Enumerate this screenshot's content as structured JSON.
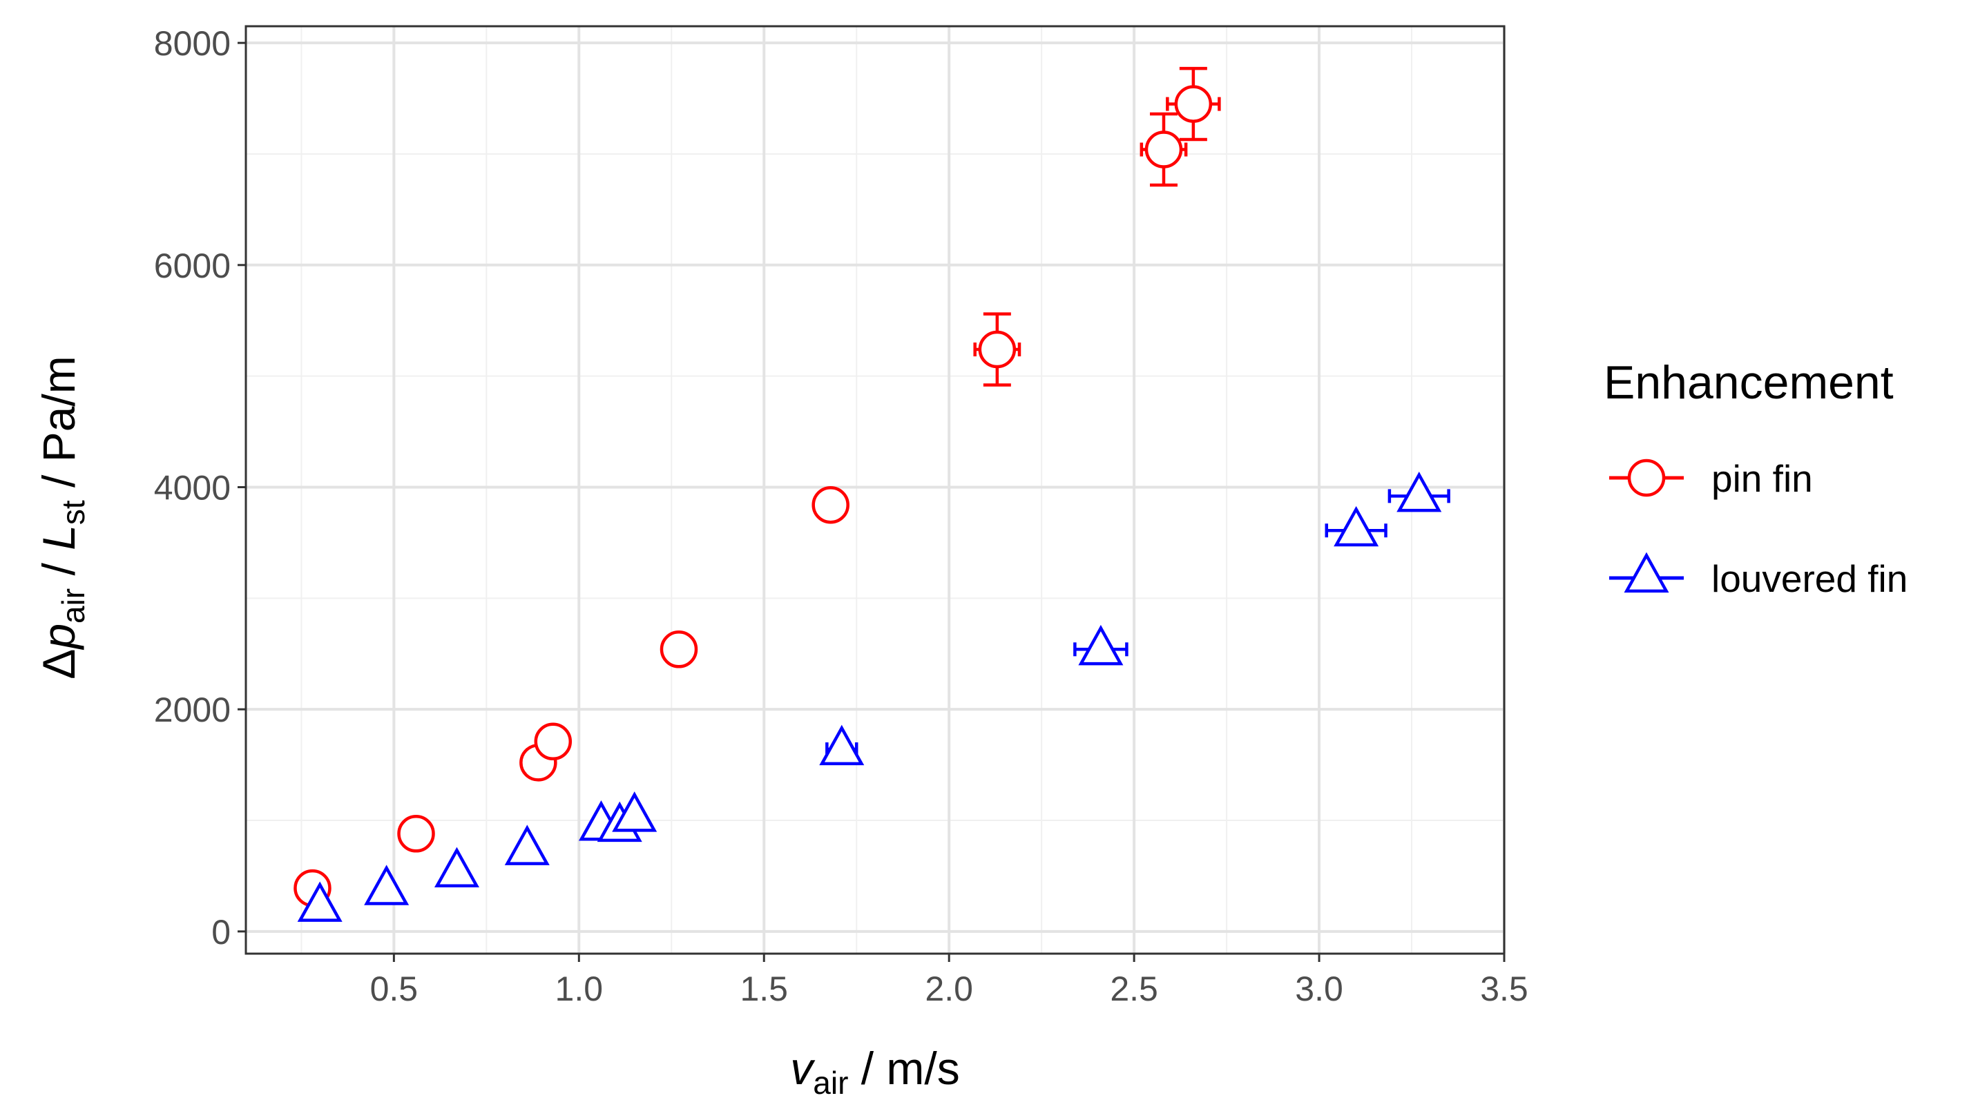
{
  "chart_data": {
    "type": "scatter",
    "xlabel": {
      "symbol": "v",
      "sub": "air",
      "rest": " / m/s"
    },
    "ylabel": {
      "delta": "Δ",
      "p": "p",
      "p_sub": "air",
      "sep": " / ",
      "L": "L",
      "L_sub": "st",
      "unit": "  /  Pa/m"
    },
    "xlim": [
      0.1,
      3.5
    ],
    "ylim": [
      -200,
      8150
    ],
    "x_ticks": [
      0.5,
      1.0,
      1.5,
      2.0,
      2.5,
      3.0,
      3.5
    ],
    "x_tick_labels": [
      "0.5",
      "1.0",
      "1.5",
      "2.0",
      "2.5",
      "3.0",
      "3.5"
    ],
    "y_ticks": [
      0,
      2000,
      4000,
      6000,
      8000
    ],
    "y_tick_labels": [
      "0",
      "2000",
      "4000",
      "6000",
      "8000"
    ],
    "grid": true,
    "legend": {
      "title": "Enhancement",
      "position": "right"
    },
    "series": [
      {
        "name": "pin fin",
        "color": "#ff0000",
        "marker": "circle",
        "points": [
          {
            "x": 0.28,
            "y": 390,
            "xerr": 0.0,
            "yerr": 0
          },
          {
            "x": 0.56,
            "y": 880,
            "xerr": 0.0,
            "yerr": 0
          },
          {
            "x": 0.89,
            "y": 1520,
            "xerr": 0.0,
            "yerr": 0
          },
          {
            "x": 0.93,
            "y": 1710,
            "xerr": 0.0,
            "yerr": 0
          },
          {
            "x": 1.27,
            "y": 2540,
            "xerr": 0.0,
            "yerr": 0
          },
          {
            "x": 1.68,
            "y": 3840,
            "xerr": 0.04,
            "yerr": 0
          },
          {
            "x": 2.13,
            "y": 5240,
            "xerr": 0.06,
            "yerr": 320
          },
          {
            "x": 2.58,
            "y": 7040,
            "xerr": 0.06,
            "yerr": 320
          },
          {
            "x": 2.66,
            "y": 7450,
            "xerr": 0.07,
            "yerr": 320
          }
        ]
      },
      {
        "name": "louvered fin",
        "color": "#0000ff",
        "marker": "triangle",
        "points": [
          {
            "x": 0.3,
            "y": 230,
            "xerr": 0.0,
            "yerr": 0
          },
          {
            "x": 0.48,
            "y": 380,
            "xerr": 0.0,
            "yerr": 0
          },
          {
            "x": 0.67,
            "y": 540,
            "xerr": 0.0,
            "yerr": 0
          },
          {
            "x": 0.86,
            "y": 740,
            "xerr": 0.0,
            "yerr": 0
          },
          {
            "x": 1.06,
            "y": 960,
            "xerr": 0.0,
            "yerr": 0
          },
          {
            "x": 1.11,
            "y": 950,
            "xerr": 0.0,
            "yerr": 0
          },
          {
            "x": 1.15,
            "y": 1040,
            "xerr": 0.0,
            "yerr": 0
          },
          {
            "x": 1.71,
            "y": 1640,
            "xerr": 0.04,
            "yerr": 0
          },
          {
            "x": 2.41,
            "y": 2540,
            "xerr": 0.07,
            "yerr": 0
          },
          {
            "x": 3.1,
            "y": 3610,
            "xerr": 0.08,
            "yerr": 0
          },
          {
            "x": 3.27,
            "y": 3920,
            "xerr": 0.08,
            "yerr": 0
          }
        ]
      }
    ]
  }
}
